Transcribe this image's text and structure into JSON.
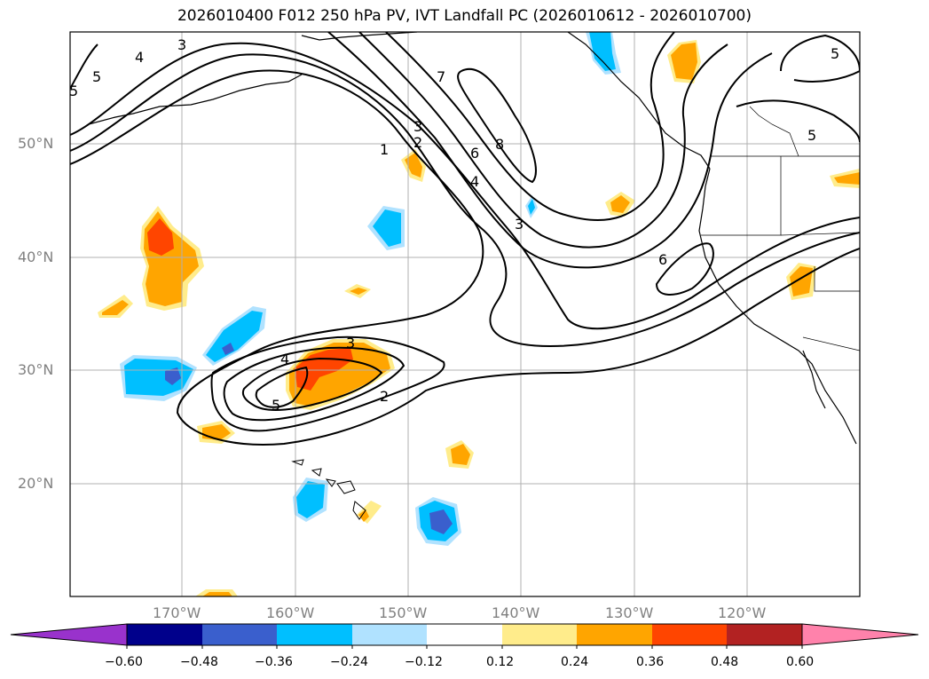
{
  "title": "2026010400 F012 250 hPa PV, IVT Landfall PC (2026010612 - 2026010700)",
  "latitude_labels": [
    "50°N",
    "40°N",
    "30°N",
    "20°N"
  ],
  "longitude_labels": [
    "170°W",
    "160°W",
    "150°W",
    "140°W",
    "130°W",
    "120°W"
  ],
  "contour_labels": [
    "3",
    "4",
    "5",
    "7",
    "3",
    "2",
    "1",
    "6",
    "8",
    "4",
    "3",
    "6",
    "5",
    "5",
    "4",
    "3",
    "5",
    "2",
    "5"
  ],
  "colorbar": {
    "ticks": [
      "−0.60",
      "−0.48",
      "−0.36",
      "−0.24",
      "−0.12",
      "0.12",
      "0.24",
      "0.36",
      "0.48",
      "0.60"
    ],
    "colors": [
      "#9932cc",
      "#00008b",
      "#3a5fcd",
      "#00bfff",
      "#b0e2ff",
      "#ffffff",
      "#ffec8b",
      "#ffa500",
      "#ff4500",
      "#b22222",
      "#ff82ab"
    ]
  }
}
